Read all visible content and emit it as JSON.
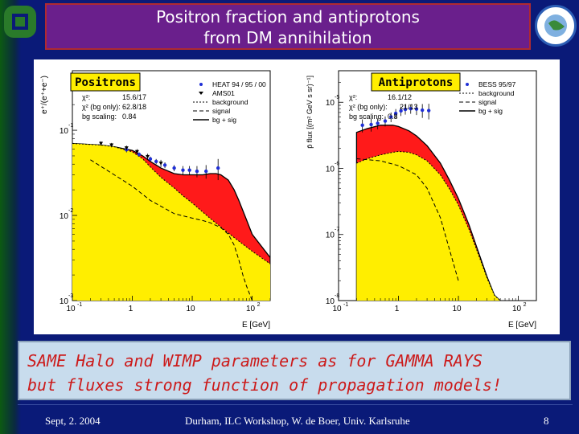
{
  "slide": {
    "title_line1": "Positron fraction and antiprotons",
    "title_line2": "from DM annihilation",
    "bottom_line1": "SAME Halo and WIMP parameters as for GAMMA RAYS",
    "bottom_line2": "but fluxes strong function of propagation models!",
    "footer_date": "Sept, 2. 2004",
    "footer_center": "Durham, ILC Workshop, W. de Boer,  Univ. Karlsruhe",
    "footer_page": "8"
  },
  "colors": {
    "background": "#0a1a78",
    "title_box": "#6a1f8c",
    "bg_fill": "#ffee00",
    "signal_fill": "#ff1a1a",
    "label_box": "#ffee00",
    "data_points": "#1f2fd6",
    "bottom_text": "#cc1a1a"
  },
  "chart_data": [
    {
      "type": "area",
      "panel_label": "Positrons",
      "xlabel": "E [GeV]",
      "ylabel": "e⁺/(e⁺+e⁻)",
      "xscale": "log",
      "yscale": "log",
      "xlim": [
        0.1,
        200
      ],
      "ylim": [
        0.001,
        0.5
      ],
      "x_ticks": [
        "10",
        "1",
        "10",
        "10"
      ],
      "x_tick_exps": [
        "-1",
        "",
        "",
        "2"
      ],
      "y_ticks": [
        "10",
        "10",
        "10"
      ],
      "y_tick_exps": [
        "-1",
        "-2",
        "-3"
      ],
      "stats": {
        "chi2_label": "χ²:",
        "chi2": "15.6/17",
        "chi2_bg_label": "χ² (bg only):",
        "chi2_bg": "62.8/18",
        "bg_scaling_label": "bg scaling:",
        "bg_scaling": "0.84"
      },
      "legend": [
        {
          "label": "HEAT 94 / 95 / 00",
          "style": "point"
        },
        {
          "label": "AMS01",
          "style": "triangle"
        },
        {
          "label": "background",
          "style": "dotted"
        },
        {
          "label": "signal",
          "style": "dashed"
        },
        {
          "label": "bg + sig",
          "style": "solid"
        }
      ],
      "legend_position": "top-right",
      "background_curve": {
        "x": [
          0.1,
          0.3,
          0.5,
          1,
          1.5,
          2,
          3,
          5,
          7,
          10,
          20,
          30,
          50,
          100,
          200
        ],
        "y": [
          0.07,
          0.067,
          0.064,
          0.056,
          0.046,
          0.037,
          0.028,
          0.021,
          0.017,
          0.014,
          0.0092,
          0.0073,
          0.0055,
          0.0038,
          0.0027
        ]
      },
      "total_curve": {
        "x": [
          0.1,
          0.3,
          0.5,
          1,
          1.5,
          2,
          3,
          5,
          7,
          10,
          15,
          20,
          25,
          30,
          40,
          50,
          60,
          80,
          100,
          200
        ],
        "y": [
          0.07,
          0.067,
          0.064,
          0.058,
          0.05,
          0.043,
          0.036,
          0.031,
          0.03,
          0.03,
          0.03,
          0.031,
          0.031,
          0.03,
          0.026,
          0.02,
          0.015,
          0.009,
          0.006,
          0.0032
        ]
      },
      "signal_curve": {
        "x": [
          0.2,
          0.5,
          1,
          2,
          5,
          10,
          15,
          20,
          30,
          40,
          50,
          60,
          70,
          80,
          100
        ],
        "y": [
          0.045,
          0.03,
          0.022,
          0.015,
          0.0105,
          0.0093,
          0.0087,
          0.0082,
          0.0072,
          0.006,
          0.0045,
          0.003,
          0.002,
          0.0015,
          0.001
        ]
      },
      "heat_points": [
        {
          "x": 0.8,
          "y": 0.059,
          "err": 0.004
        },
        {
          "x": 1.3,
          "y": 0.052,
          "err": 0.003
        },
        {
          "x": 2.0,
          "y": 0.046,
          "err": 0.003
        },
        {
          "x": 2.5,
          "y": 0.043,
          "err": 0.003
        },
        {
          "x": 3.5,
          "y": 0.039,
          "err": 0.003
        },
        {
          "x": 5,
          "y": 0.036,
          "err": 0.003
        },
        {
          "x": 7,
          "y": 0.034,
          "err": 0.004
        },
        {
          "x": 9,
          "y": 0.034,
          "err": 0.004
        },
        {
          "x": 12,
          "y": 0.033,
          "err": 0.005
        },
        {
          "x": 17,
          "y": 0.033,
          "err": 0.006
        },
        {
          "x": 27,
          "y": 0.036,
          "err": 0.01
        }
      ],
      "ams_points": [
        {
          "x": 0.3,
          "y": 0.07,
          "err": 0.004
        },
        {
          "x": 0.45,
          "y": 0.067,
          "err": 0.004
        },
        {
          "x": 0.8,
          "y": 0.062,
          "err": 0.004
        },
        {
          "x": 1.2,
          "y": 0.056,
          "err": 0.004
        },
        {
          "x": 1.8,
          "y": 0.049,
          "err": 0.004
        },
        {
          "x": 3,
          "y": 0.041,
          "err": 0.004
        }
      ]
    },
    {
      "type": "area",
      "panel_label": "Antiprotons",
      "xlabel": "E [GeV]",
      "ylabel": "p̄ flux [(m² GeV s sr)⁻¹]",
      "xscale": "log",
      "yscale": "log",
      "xlim": [
        0.1,
        200
      ],
      "ylim": [
        1e-08,
        3e-05
      ],
      "x_ticks": [
        "10",
        "1",
        "10",
        "10"
      ],
      "x_tick_exps": [
        "-1",
        "",
        "",
        "2"
      ],
      "y_ticks": [
        "10",
        "10",
        "10",
        "10"
      ],
      "y_tick_exps": [
        "-5",
        "-6",
        "-7",
        "-8"
      ],
      "stats": {
        "chi2_label": "χ²:",
        "chi2": "16.1/12",
        "chi2_bg_label": "χ² (bg only):",
        "chi2_bg": "21/13",
        "bg_scaling_label": "bg scaling:",
        "bg_scaling": "0.8"
      },
      "legend": [
        {
          "label": "BESS 95/97",
          "style": "point"
        },
        {
          "label": "background",
          "style": "dotted"
        },
        {
          "label": "signal",
          "style": "dashed"
        },
        {
          "label": "bg + sig",
          "style": "solid"
        }
      ],
      "legend_position": "top-right",
      "background_curve": {
        "x": [
          0.2,
          0.3,
          0.5,
          0.8,
          1,
          1.5,
          2,
          3,
          5,
          7,
          10,
          15,
          20,
          30,
          40,
          50
        ],
        "y": [
          1.2e-06,
          1.4e-06,
          1.6e-06,
          1.75e-06,
          1.8e-06,
          1.75e-06,
          1.6e-06,
          1.3e-06,
          8e-07,
          5e-07,
          2.8e-07,
          1.2e-07,
          6e-08,
          2.2e-08,
          1.2e-08,
          1e-08
        ]
      },
      "total_curve": {
        "x": [
          0.2,
          0.3,
          0.5,
          0.8,
          1,
          1.5,
          2,
          3,
          5,
          7,
          10,
          15,
          20,
          30,
          40,
          50
        ],
        "y": [
          3.5e-06,
          4e-06,
          4.5e-06,
          4.5e-06,
          4.3e-06,
          3.7e-06,
          3.1e-06,
          2.2e-06,
          1.2e-06,
          6.8e-07,
          3.5e-07,
          1.4e-07,
          6.6e-08,
          2.3e-08,
          1.2e-08,
          1e-08
        ]
      },
      "signal_curve": {
        "x": [
          0.2,
          0.5,
          1,
          2,
          3,
          5,
          10
        ],
        "y": [
          1.4e-06,
          1.3e-06,
          1.1e-06,
          8e-07,
          5e-07,
          1.8e-07,
          2e-08
        ]
      },
      "bess_points": [
        {
          "x": 0.25,
          "y": 4.5e-06,
          "err": 1e-06
        },
        {
          "x": 0.35,
          "y": 4.6e-06,
          "err": 1e-06
        },
        {
          "x": 0.45,
          "y": 4.8e-06,
          "err": 9e-07
        },
        {
          "x": 0.6,
          "y": 5.2e-06,
          "err": 9e-07
        },
        {
          "x": 0.75,
          "y": 6e-06,
          "err": 1e-06
        },
        {
          "x": 0.9,
          "y": 6.8e-06,
          "err": 1.1e-06
        },
        {
          "x": 1.1,
          "y": 7.4e-06,
          "err": 1.2e-06
        },
        {
          "x": 1.3,
          "y": 7.8e-06,
          "err": 1.3e-06
        },
        {
          "x": 1.6,
          "y": 8e-06,
          "err": 1.3e-06
        },
        {
          "x": 2.0,
          "y": 7.9e-06,
          "err": 1.5e-06
        },
        {
          "x": 2.5,
          "y": 7.6e-06,
          "err": 1.8e-06
        },
        {
          "x": 3.2,
          "y": 7.5e-06,
          "err": 2e-06
        }
      ]
    }
  ]
}
